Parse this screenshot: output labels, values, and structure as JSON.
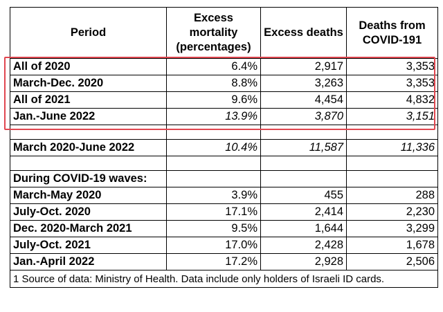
{
  "headers": {
    "period": "Period",
    "excess_mortality": "Excess mortality (percentages)",
    "excess_deaths": "Excess deaths",
    "covid_deaths": "Deaths from COVID-191"
  },
  "highlighted_rows": [
    {
      "period": "All of 2020",
      "excess_mortality": "6.4%",
      "excess_deaths": "2,917",
      "covid_deaths": "3,353"
    },
    {
      "period": "March-Dec. 2020",
      "excess_mortality": "8.8%",
      "excess_deaths": "3,263",
      "covid_deaths": "3,353"
    },
    {
      "period": "All of 2021",
      "excess_mortality": "9.6%",
      "excess_deaths": "4,454",
      "covid_deaths": "4,832"
    },
    {
      "period": "Jan.-June 2022",
      "excess_mortality": "13.9%",
      "excess_deaths": "3,870",
      "covid_deaths": "3,151"
    }
  ],
  "total_row": {
    "period": "March 2020-June 2022",
    "excess_mortality": "10.4%",
    "excess_deaths": "11,587",
    "covid_deaths": "11,336"
  },
  "waves_heading": "During COVID-19 waves:",
  "wave_rows": [
    {
      "period": "March-May 2020",
      "excess_mortality": "3.9%",
      "excess_deaths": "455",
      "covid_deaths": "288"
    },
    {
      "period": "July-Oct. 2020",
      "excess_mortality": "17.1%",
      "excess_deaths": "2,414",
      "covid_deaths": "2,230"
    },
    {
      "period": "Dec. 2020-March 2021",
      "excess_mortality": "9.5%",
      "excess_deaths": "1,644",
      "covid_deaths": "3,299"
    },
    {
      "period": "July-Oct. 2021",
      "excess_mortality": "17.0%",
      "excess_deaths": "2,428",
      "covid_deaths": "1,678"
    },
    {
      "period": "Jan.-April 2022",
      "excess_mortality": "17.2%",
      "excess_deaths": "2,928",
      "covid_deaths": "2,506"
    }
  ],
  "footnote": "1 Source of data: Ministry of Health. Data include only holders of Israeli ID cards.",
  "colors": {
    "highlight_border": "#e0464f"
  }
}
